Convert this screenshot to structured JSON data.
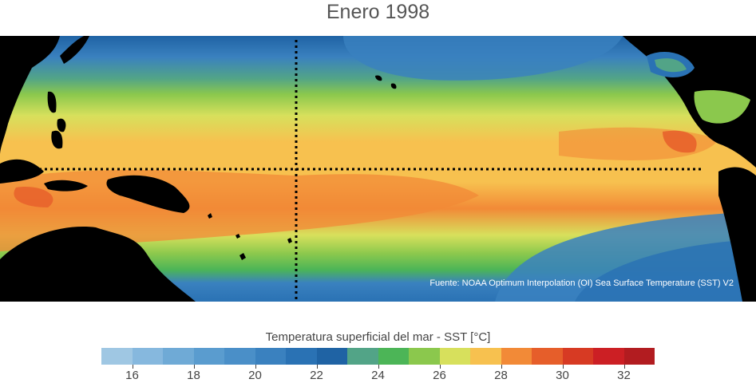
{
  "title": "Enero 1998",
  "source_note": "Fuente: NOAA Optimum Interpolation (OI) Sea Surface Temperature (SST) V2",
  "colorbar": {
    "title": "Temperatura superficial del mar - SST  [°C]",
    "min": 15,
    "max": 33,
    "step": 1,
    "colors": [
      "#9fc7e3",
      "#86b8de",
      "#6faad6",
      "#5a9ccf",
      "#4a8fc8",
      "#3a81bf",
      "#2a72b4",
      "#1f63a4",
      "#52a487",
      "#4cb557",
      "#8bc84d",
      "#d7e05c",
      "#f7c14f",
      "#f28a37",
      "#e65e2a",
      "#d73a23",
      "#cc1f24",
      "#b21c20"
    ],
    "tick_labels": [
      "16",
      "18",
      "20",
      "22",
      "24",
      "26",
      "28",
      "30",
      "32"
    ],
    "tick_values": [
      16,
      18,
      20,
      22,
      24,
      26,
      28,
      30,
      32
    ]
  },
  "map": {
    "region": "Pacífico tropical",
    "land_color": "#000000",
    "reference_lines": "dotted equator and dotted meridian"
  }
}
